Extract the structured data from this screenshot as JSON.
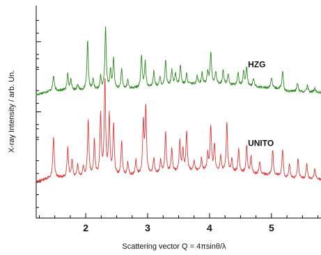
{
  "chart_data": {
    "type": "line",
    "xlabel": "Scattering vector   Q = 4πsinθ/λ",
    "ylabel": "X-ray Intensity / arb. Un.",
    "xlim": [
      1.2,
      5.8
    ],
    "ylim": [
      0,
      1
    ],
    "x_ticks": [
      "2",
      "3",
      "4",
      "5"
    ],
    "x_tick_values": [
      2,
      3,
      4,
      5
    ],
    "y_ticks_labeled": false,
    "grid": false,
    "series": [
      {
        "name": "HZG",
        "color": "#2e8b1f",
        "baseline": 0.6,
        "peaks": [
          [
            1.48,
            0.07
          ],
          [
            1.71,
            0.08
          ],
          [
            1.76,
            0.05
          ],
          [
            1.87,
            0.03
          ],
          [
            2.03,
            0.23
          ],
          [
            2.12,
            0.05
          ],
          [
            2.24,
            0.06
          ],
          [
            2.32,
            0.29
          ],
          [
            2.4,
            0.09
          ],
          [
            2.45,
            0.14
          ],
          [
            2.58,
            0.09
          ],
          [
            2.68,
            0.04
          ],
          [
            2.9,
            0.15
          ],
          [
            2.96,
            0.12
          ],
          [
            3.1,
            0.07
          ],
          [
            3.2,
            0.04
          ],
          [
            3.29,
            0.12
          ],
          [
            3.39,
            0.07
          ],
          [
            3.45,
            0.05
          ],
          [
            3.53,
            0.09
          ],
          [
            3.63,
            0.05
          ],
          [
            3.8,
            0.04
          ],
          [
            3.88,
            0.05
          ],
          [
            3.97,
            0.06
          ],
          [
            4.02,
            0.15
          ],
          [
            4.1,
            0.06
          ],
          [
            4.22,
            0.07
          ],
          [
            4.3,
            0.05
          ],
          [
            4.46,
            0.06
          ],
          [
            4.55,
            0.07
          ],
          [
            4.6,
            0.09
          ],
          [
            4.71,
            0.04
          ],
          [
            5.0,
            0.05
          ],
          [
            5.18,
            0.08
          ],
          [
            5.42,
            0.04
          ],
          [
            5.58,
            0.03
          ],
          [
            5.7,
            0.02
          ]
        ]
      },
      {
        "name": "UNITO",
        "color": "#e03838",
        "baseline": 0.19,
        "peaks": [
          [
            1.48,
            0.19
          ],
          [
            1.71,
            0.14
          ],
          [
            1.78,
            0.08
          ],
          [
            1.87,
            0.06
          ],
          [
            1.96,
            0.05
          ],
          [
            2.04,
            0.27
          ],
          [
            2.14,
            0.17
          ],
          [
            2.24,
            0.29
          ],
          [
            2.31,
            0.45
          ],
          [
            2.38,
            0.28
          ],
          [
            2.45,
            0.24
          ],
          [
            2.58,
            0.16
          ],
          [
            2.68,
            0.06
          ],
          [
            2.81,
            0.07
          ],
          [
            2.93,
            0.24
          ],
          [
            2.97,
            0.31
          ],
          [
            3.1,
            0.07
          ],
          [
            3.21,
            0.06
          ],
          [
            3.29,
            0.19
          ],
          [
            3.39,
            0.11
          ],
          [
            3.52,
            0.14
          ],
          [
            3.57,
            0.1
          ],
          [
            3.63,
            0.19
          ],
          [
            3.75,
            0.05
          ],
          [
            3.87,
            0.06
          ],
          [
            3.97,
            0.08
          ],
          [
            4.02,
            0.21
          ],
          [
            4.08,
            0.12
          ],
          [
            4.18,
            0.07
          ],
          [
            4.28,
            0.23
          ],
          [
            4.36,
            0.06
          ],
          [
            4.47,
            0.11
          ],
          [
            4.6,
            0.13
          ],
          [
            4.67,
            0.08
          ],
          [
            4.81,
            0.06
          ],
          [
            5.02,
            0.12
          ],
          [
            5.18,
            0.12
          ],
          [
            5.29,
            0.07
          ],
          [
            5.43,
            0.1
          ],
          [
            5.57,
            0.07
          ],
          [
            5.7,
            0.05
          ]
        ]
      }
    ]
  }
}
